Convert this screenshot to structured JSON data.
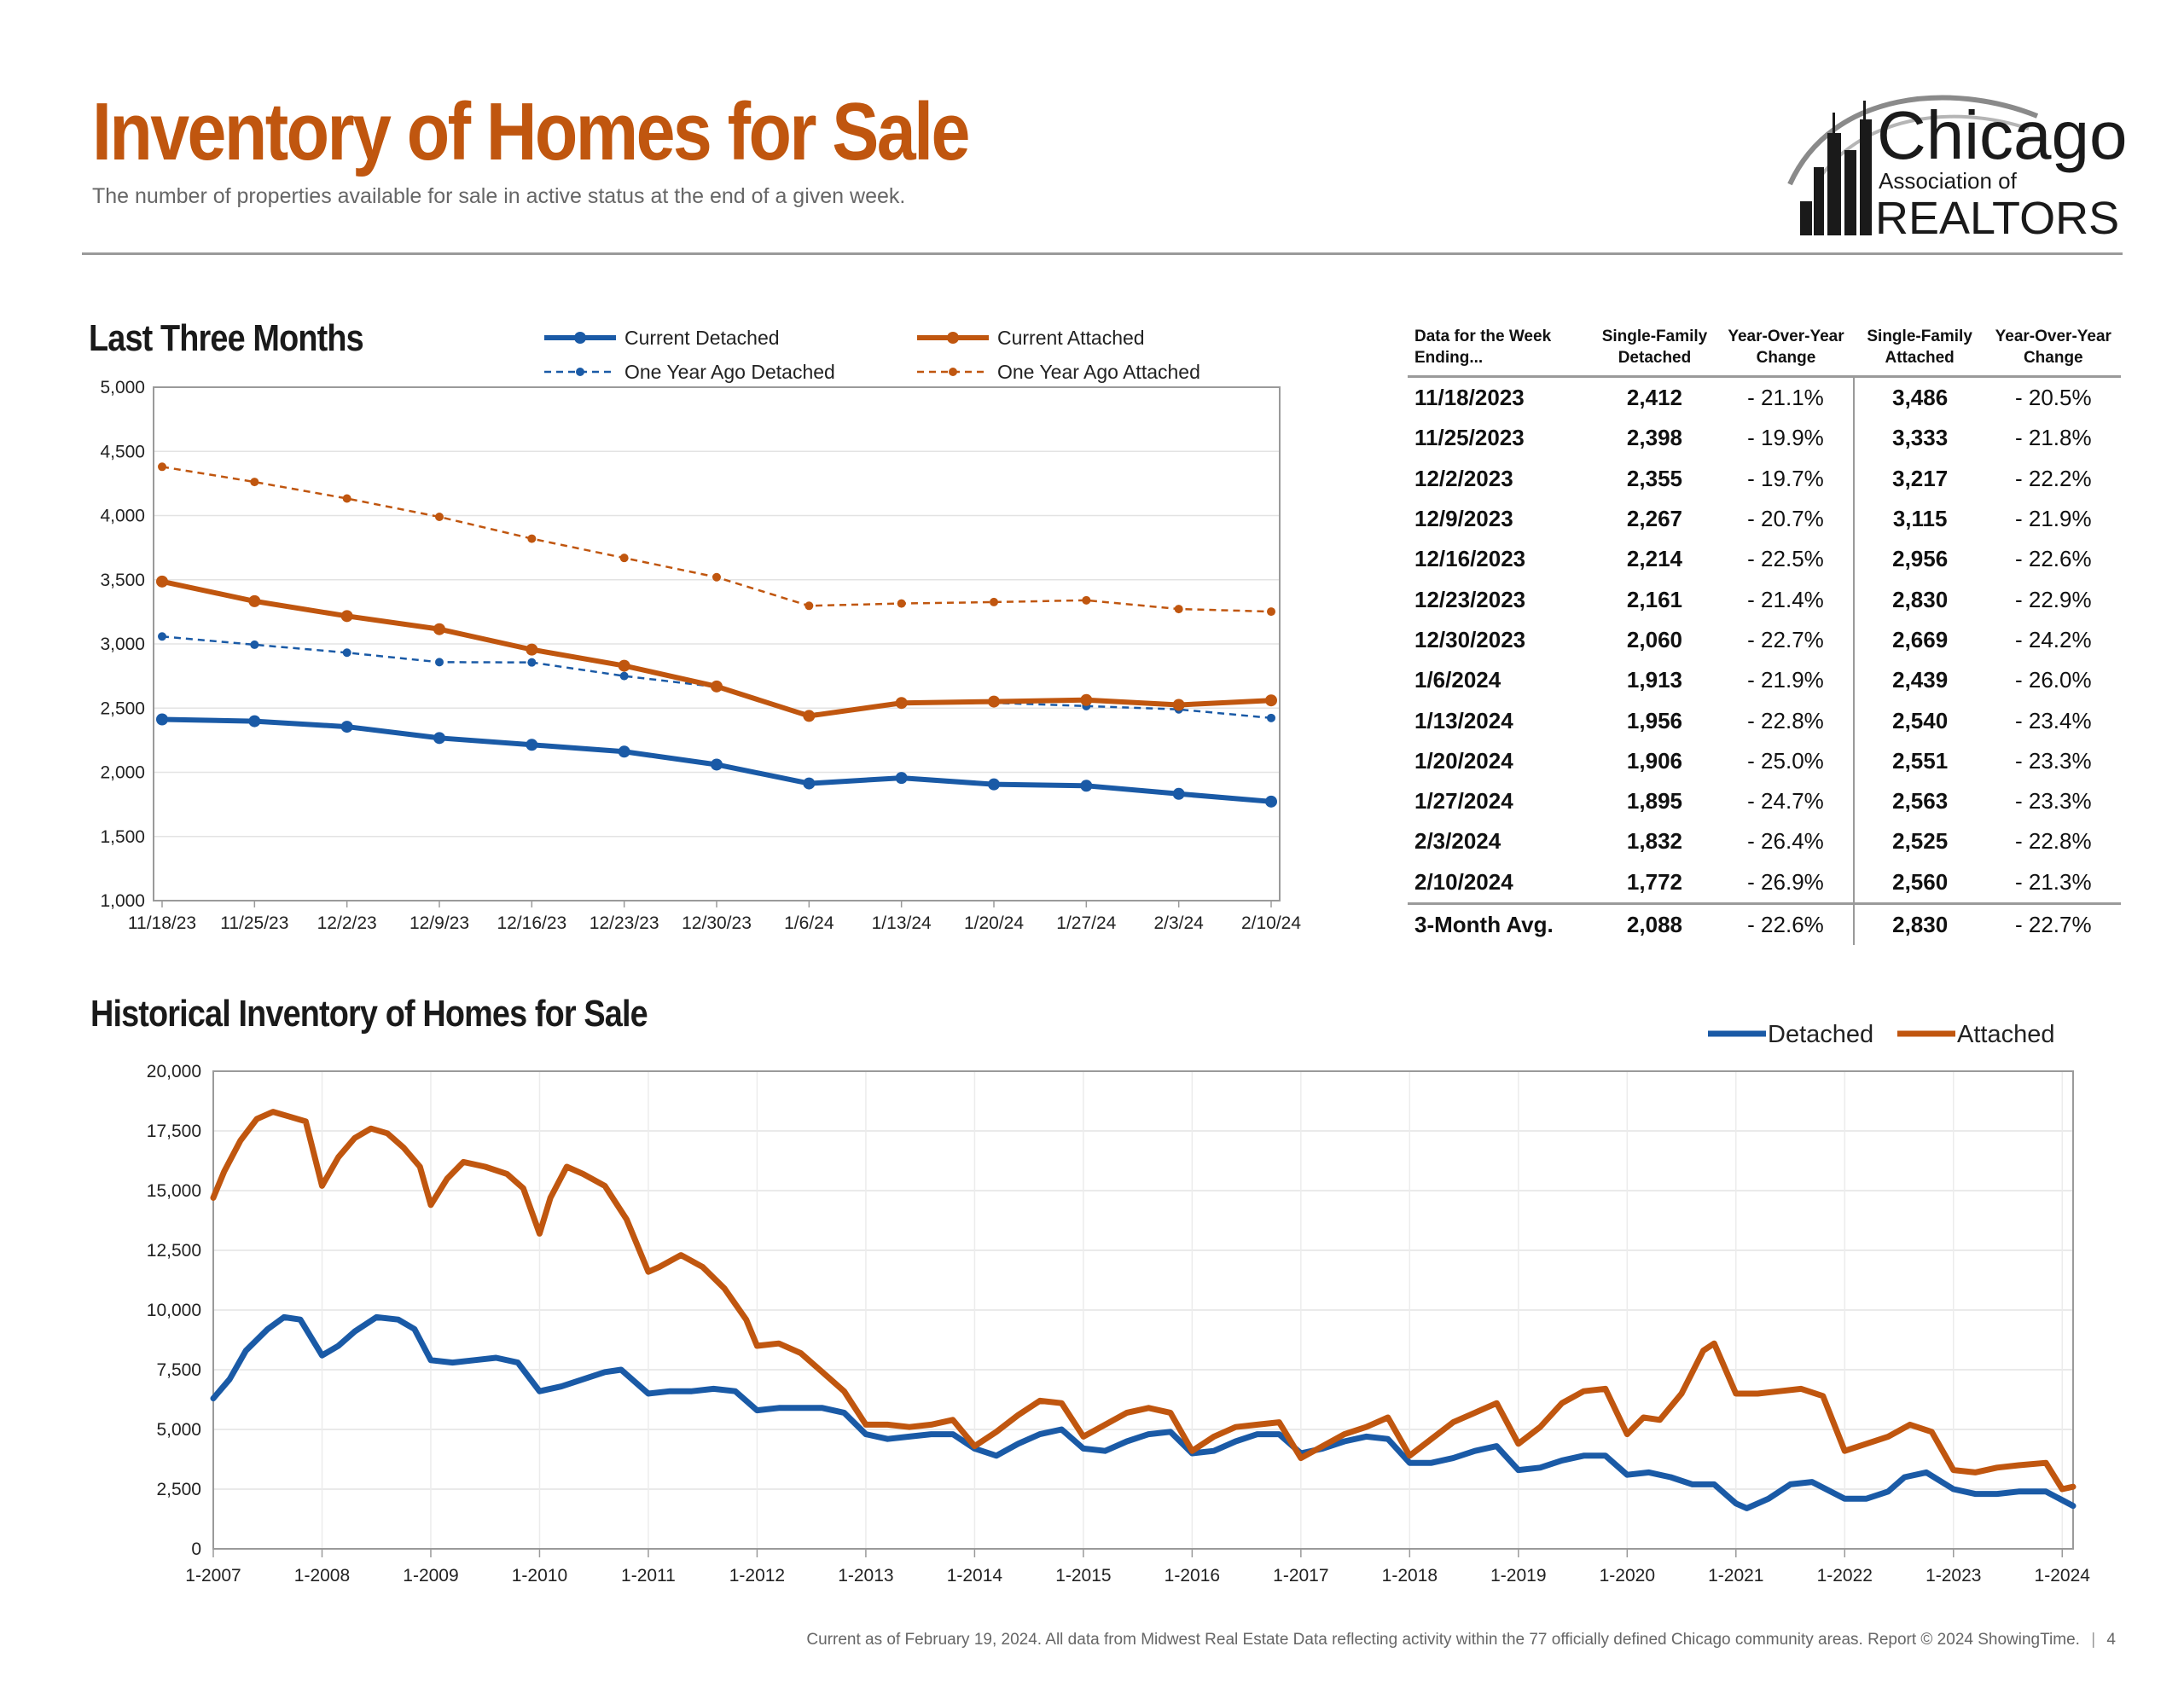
{
  "header": {
    "title": "Inventory of Homes for Sale",
    "subtitle": "The number of properties available for sale in active status at the end of a given week.",
    "logo_text": {
      "chicago": "Chicago",
      "association": "Association of",
      "realtors": "REALTORS"
    }
  },
  "colors": {
    "detached": "#1a5aa6",
    "attached": "#c0560f",
    "title": "#c0560f"
  },
  "chart_data": [
    {
      "type": "line",
      "title": "Last Three Months",
      "x": [
        "11/18/23",
        "11/25/23",
        "12/2/23",
        "12/9/23",
        "12/16/23",
        "12/23/23",
        "12/30/23",
        "1/6/24",
        "1/13/24",
        "1/20/24",
        "1/27/24",
        "2/3/24",
        "2/10/24"
      ],
      "ylim": [
        1000,
        5000
      ],
      "yticks": [
        "1,000",
        "1,500",
        "2,000",
        "2,500",
        "3,000",
        "3,500",
        "4,000",
        "4,500",
        "5,000"
      ],
      "grid": true,
      "legend_position": "top",
      "series": [
        {
          "name": "Current Detached",
          "style": "solid",
          "color": "#1a5aa6",
          "values": [
            2412,
            2398,
            2355,
            2267,
            2214,
            2161,
            2060,
            1913,
            1956,
            1906,
            1895,
            1832,
            1772
          ]
        },
        {
          "name": "Current Attached",
          "style": "solid",
          "color": "#c0560f",
          "values": [
            3486,
            3333,
            3217,
            3115,
            2956,
            2830,
            2669,
            2439,
            2540,
            2551,
            2563,
            2525,
            2560
          ]
        },
        {
          "name": "One Year Ago Detached",
          "style": "dashed",
          "color": "#1a5aa6",
          "values": [
            3058,
            2994,
            2932,
            2858,
            2856,
            2750,
            2665,
            2452,
            2533,
            2541,
            2516,
            2490,
            2423
          ]
        },
        {
          "name": "One Year Ago Attached",
          "style": "dashed",
          "color": "#c0560f",
          "values": [
            4380,
            4262,
            4133,
            3990,
            3820,
            3670,
            3520,
            3297,
            3315,
            3326,
            3340,
            3272,
            3252
          ]
        }
      ]
    },
    {
      "type": "line",
      "title": "Historical Inventory of Homes for Sale",
      "xlim": [
        2007.0,
        2024.1
      ],
      "xticks": [
        "1-2007",
        "1-2008",
        "1-2009",
        "1-2010",
        "1-2011",
        "1-2012",
        "1-2013",
        "1-2014",
        "1-2015",
        "1-2016",
        "1-2017",
        "1-2018",
        "1-2019",
        "1-2020",
        "1-2021",
        "1-2022",
        "1-2023",
        "1-2024"
      ],
      "ylim": [
        0,
        20000
      ],
      "yticks": [
        "0",
        "2,500",
        "5,000",
        "7,500",
        "10,000",
        "12,500",
        "15,000",
        "17,500",
        "20,000"
      ],
      "grid": true,
      "legend_position": "top-right",
      "series": [
        {
          "name": "Detached",
          "color": "#1a5aa6",
          "points": [
            [
              2007.0,
              6300
            ],
            [
              2007.15,
              7100
            ],
            [
              2007.3,
              8300
            ],
            [
              2007.5,
              9200
            ],
            [
              2007.65,
              9700
            ],
            [
              2007.8,
              9600
            ],
            [
              2008.0,
              8100
            ],
            [
              2008.15,
              8500
            ],
            [
              2008.3,
              9100
            ],
            [
              2008.5,
              9700
            ],
            [
              2008.7,
              9600
            ],
            [
              2008.85,
              9200
            ],
            [
              2009.0,
              7900
            ],
            [
              2009.2,
              7800
            ],
            [
              2009.4,
              7900
            ],
            [
              2009.6,
              8000
            ],
            [
              2009.8,
              7800
            ],
            [
              2010.0,
              6600
            ],
            [
              2010.2,
              6800
            ],
            [
              2010.4,
              7100
            ],
            [
              2010.6,
              7400
            ],
            [
              2010.75,
              7500
            ],
            [
              2011.0,
              6500
            ],
            [
              2011.2,
              6600
            ],
            [
              2011.4,
              6600
            ],
            [
              2011.6,
              6700
            ],
            [
              2011.8,
              6600
            ],
            [
              2012.0,
              5800
            ],
            [
              2012.2,
              5900
            ],
            [
              2012.4,
              5900
            ],
            [
              2012.6,
              5900
            ],
            [
              2012.8,
              5700
            ],
            [
              2013.0,
              4800
            ],
            [
              2013.2,
              4600
            ],
            [
              2013.4,
              4700
            ],
            [
              2013.6,
              4800
            ],
            [
              2013.8,
              4800
            ],
            [
              2014.0,
              4200
            ],
            [
              2014.2,
              3900
            ],
            [
              2014.4,
              4400
            ],
            [
              2014.6,
              4800
            ],
            [
              2014.8,
              5000
            ],
            [
              2015.0,
              4200
            ],
            [
              2015.2,
              4100
            ],
            [
              2015.4,
              4500
            ],
            [
              2015.6,
              4800
            ],
            [
              2015.8,
              4900
            ],
            [
              2016.0,
              4000
            ],
            [
              2016.2,
              4100
            ],
            [
              2016.4,
              4500
            ],
            [
              2016.6,
              4800
            ],
            [
              2016.8,
              4800
            ],
            [
              2017.0,
              4000
            ],
            [
              2017.2,
              4200
            ],
            [
              2017.4,
              4500
            ],
            [
              2017.6,
              4700
            ],
            [
              2017.8,
              4600
            ],
            [
              2018.0,
              3600
            ],
            [
              2018.2,
              3600
            ],
            [
              2018.4,
              3800
            ],
            [
              2018.6,
              4100
            ],
            [
              2018.8,
              4300
            ],
            [
              2019.0,
              3300
            ],
            [
              2019.2,
              3400
            ],
            [
              2019.4,
              3700
            ],
            [
              2019.6,
              3900
            ],
            [
              2019.8,
              3900
            ],
            [
              2020.0,
              3100
            ],
            [
              2020.2,
              3200
            ],
            [
              2020.4,
              3000
            ],
            [
              2020.6,
              2700
            ],
            [
              2020.8,
              2700
            ],
            [
              2021.0,
              1900
            ],
            [
              2021.1,
              1700
            ],
            [
              2021.3,
              2100
            ],
            [
              2021.5,
              2700
            ],
            [
              2021.7,
              2800
            ],
            [
              2022.0,
              2100
            ],
            [
              2022.2,
              2100
            ],
            [
              2022.4,
              2400
            ],
            [
              2022.55,
              3000
            ],
            [
              2022.75,
              3200
            ],
            [
              2023.0,
              2500
            ],
            [
              2023.2,
              2300
            ],
            [
              2023.4,
              2300
            ],
            [
              2023.6,
              2400
            ],
            [
              2023.85,
              2400
            ],
            [
              2024.1,
              1800
            ]
          ]
        },
        {
          "name": "Attached",
          "color": "#c0560f",
          "points": [
            [
              2007.0,
              14700
            ],
            [
              2007.1,
              15800
            ],
            [
              2007.25,
              17100
            ],
            [
              2007.4,
              18000
            ],
            [
              2007.55,
              18300
            ],
            [
              2007.7,
              18100
            ],
            [
              2007.85,
              17900
            ],
            [
              2008.0,
              15200
            ],
            [
              2008.15,
              16400
            ],
            [
              2008.3,
              17200
            ],
            [
              2008.45,
              17600
            ],
            [
              2008.6,
              17400
            ],
            [
              2008.75,
              16800
            ],
            [
              2008.9,
              16000
            ],
            [
              2009.0,
              14400
            ],
            [
              2009.15,
              15500
            ],
            [
              2009.3,
              16200
            ],
            [
              2009.5,
              16000
            ],
            [
              2009.7,
              15700
            ],
            [
              2009.85,
              15100
            ],
            [
              2010.0,
              13200
            ],
            [
              2010.1,
              14700
            ],
            [
              2010.25,
              16000
            ],
            [
              2010.4,
              15700
            ],
            [
              2010.6,
              15200
            ],
            [
              2010.8,
              13800
            ],
            [
              2011.0,
              11600
            ],
            [
              2011.1,
              11800
            ],
            [
              2011.3,
              12300
            ],
            [
              2011.5,
              11800
            ],
            [
              2011.7,
              10900
            ],
            [
              2011.9,
              9600
            ],
            [
              2012.0,
              8500
            ],
            [
              2012.2,
              8600
            ],
            [
              2012.4,
              8200
            ],
            [
              2012.6,
              7400
            ],
            [
              2012.8,
              6600
            ],
            [
              2013.0,
              5200
            ],
            [
              2013.2,
              5200
            ],
            [
              2013.4,
              5100
            ],
            [
              2013.6,
              5200
            ],
            [
              2013.8,
              5400
            ],
            [
              2014.0,
              4300
            ],
            [
              2014.2,
              4900
            ],
            [
              2014.4,
              5600
            ],
            [
              2014.6,
              6200
            ],
            [
              2014.8,
              6100
            ],
            [
              2015.0,
              4700
            ],
            [
              2015.2,
              5200
            ],
            [
              2015.4,
              5700
            ],
            [
              2015.6,
              5900
            ],
            [
              2015.8,
              5700
            ],
            [
              2016.0,
              4100
            ],
            [
              2016.2,
              4700
            ],
            [
              2016.4,
              5100
            ],
            [
              2016.6,
              5200
            ],
            [
              2016.8,
              5300
            ],
            [
              2017.0,
              3800
            ],
            [
              2017.2,
              4300
            ],
            [
              2017.4,
              4800
            ],
            [
              2017.6,
              5100
            ],
            [
              2017.8,
              5500
            ],
            [
              2018.0,
              3900
            ],
            [
              2018.2,
              4600
            ],
            [
              2018.4,
              5300
            ],
            [
              2018.6,
              5700
            ],
            [
              2018.8,
              6100
            ],
            [
              2019.0,
              4400
            ],
            [
              2019.2,
              5100
            ],
            [
              2019.4,
              6100
            ],
            [
              2019.6,
              6600
            ],
            [
              2019.8,
              6700
            ],
            [
              2020.0,
              4800
            ],
            [
              2020.15,
              5500
            ],
            [
              2020.3,
              5400
            ],
            [
              2020.5,
              6500
            ],
            [
              2020.7,
              8300
            ],
            [
              2020.8,
              8600
            ],
            [
              2021.0,
              6500
            ],
            [
              2021.2,
              6500
            ],
            [
              2021.4,
              6600
            ],
            [
              2021.6,
              6700
            ],
            [
              2021.8,
              6400
            ],
            [
              2022.0,
              4100
            ],
            [
              2022.2,
              4400
            ],
            [
              2022.4,
              4700
            ],
            [
              2022.6,
              5200
            ],
            [
              2022.8,
              4900
            ],
            [
              2023.0,
              3300
            ],
            [
              2023.2,
              3200
            ],
            [
              2023.4,
              3400
            ],
            [
              2023.6,
              3500
            ],
            [
              2023.85,
              3600
            ],
            [
              2024.0,
              2500
            ],
            [
              2024.1,
              2600
            ]
          ]
        }
      ]
    }
  ],
  "table": {
    "headers": [
      "Data for the Week Ending...",
      "Single-Family Detached",
      "Year-Over-Year Change",
      "Single-Family Attached",
      "Year-Over-Year Change"
    ],
    "rows": [
      [
        "11/18/2023",
        "2,412",
        "- 21.1%",
        "3,486",
        "- 20.5%"
      ],
      [
        "11/25/2023",
        "2,398",
        "- 19.9%",
        "3,333",
        "- 21.8%"
      ],
      [
        "12/2/2023",
        "2,355",
        "- 19.7%",
        "3,217",
        "- 22.2%"
      ],
      [
        "12/9/2023",
        "2,267",
        "- 20.7%",
        "3,115",
        "- 21.9%"
      ],
      [
        "12/16/2023",
        "2,214",
        "- 22.5%",
        "2,956",
        "- 22.6%"
      ],
      [
        "12/23/2023",
        "2,161",
        "- 21.4%",
        "2,830",
        "- 22.9%"
      ],
      [
        "12/30/2023",
        "2,060",
        "- 22.7%",
        "2,669",
        "- 24.2%"
      ],
      [
        "1/6/2024",
        "1,913",
        "- 21.9%",
        "2,439",
        "- 26.0%"
      ],
      [
        "1/13/2024",
        "1,956",
        "- 22.8%",
        "2,540",
        "- 23.4%"
      ],
      [
        "1/20/2024",
        "1,906",
        "- 25.0%",
        "2,551",
        "- 23.3%"
      ],
      [
        "1/27/2024",
        "1,895",
        "- 24.7%",
        "2,563",
        "- 23.3%"
      ],
      [
        "2/3/2024",
        "1,832",
        "- 26.4%",
        "2,525",
        "- 22.8%"
      ],
      [
        "2/10/2024",
        "1,772",
        "- 26.9%",
        "2,560",
        "- 21.3%"
      ]
    ],
    "summary": [
      "3-Month Avg.",
      "2,088",
      "- 22.6%",
      "2,830",
      "- 22.7%"
    ]
  },
  "footer": {
    "note": "Current as of February 19, 2024. All data from Midwest Real Estate Data reflecting activity within the 77 officially defined Chicago community areas. Report © 2024 ShowingTime.",
    "page_number": "4"
  }
}
